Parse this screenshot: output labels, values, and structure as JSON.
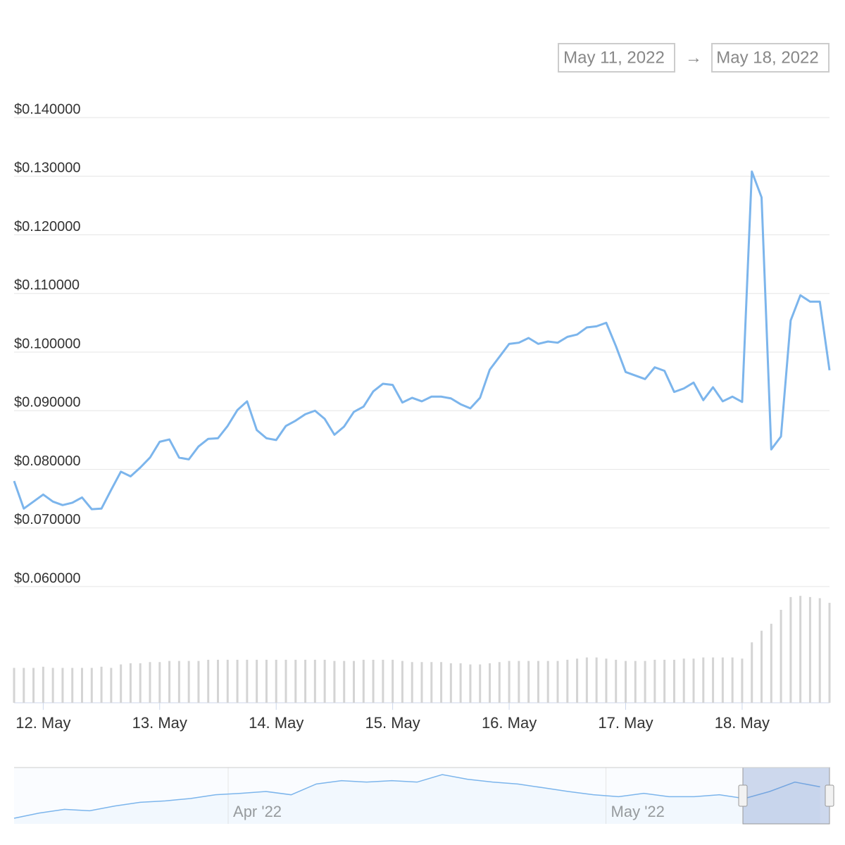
{
  "range_selector": {
    "from": "May 11, 2022",
    "arrow": "→",
    "to": "May 18, 2022"
  },
  "chart_data": {
    "type": "line",
    "x": [
      11.75,
      11.8333,
      11.9167,
      12,
      12.0833,
      12.1667,
      12.25,
      12.3333,
      12.4167,
      12.5,
      12.5833,
      12.6667,
      12.75,
      12.8333,
      12.9167,
      13,
      13.0833,
      13.1667,
      13.25,
      13.3333,
      13.4167,
      13.5,
      13.5833,
      13.6667,
      13.75,
      13.8333,
      13.9167,
      14,
      14.0833,
      14.1667,
      14.25,
      14.3333,
      14.4167,
      14.5,
      14.5833,
      14.6667,
      14.75,
      14.8333,
      14.9167,
      15,
      15.0833,
      15.1667,
      15.25,
      15.3333,
      15.4167,
      15.5,
      15.5833,
      15.6667,
      15.75,
      15.8333,
      15.9167,
      16,
      16.0833,
      16.1667,
      16.25,
      16.3333,
      16.4167,
      16.5,
      16.5833,
      16.6667,
      16.75,
      16.8333,
      16.9167,
      17,
      17.0833,
      17.1667,
      17.25,
      17.3333,
      17.4167,
      17.5,
      17.5833,
      17.6667,
      17.75,
      17.8333,
      17.9167,
      18,
      18.0833,
      18.1667,
      18.25,
      18.3333,
      18.4167,
      18.5,
      18.5833,
      18.6667,
      18.75
    ],
    "series": [
      {
        "color": "#7cb5ec",
        "values": [
          0.078,
          0.0733,
          0.0745,
          0.0757,
          0.0745,
          0.0739,
          0.0743,
          0.0752,
          0.0732,
          0.0733,
          0.0765,
          0.0796,
          0.0788,
          0.0803,
          0.082,
          0.0847,
          0.0851,
          0.082,
          0.0817,
          0.0839,
          0.0852,
          0.0853,
          0.0874,
          0.0901,
          0.0916,
          0.0867,
          0.0853,
          0.085,
          0.0874,
          0.0883,
          0.0894,
          0.09,
          0.0886,
          0.0859,
          0.0873,
          0.0898,
          0.0907,
          0.0933,
          0.0946,
          0.0944,
          0.0914,
          0.0922,
          0.0916,
          0.0924,
          0.0924,
          0.0921,
          0.0911,
          0.0904,
          0.0922,
          0.097,
          0.0992,
          0.1014,
          0.1016,
          0.1024,
          0.1014,
          0.1018,
          0.1016,
          0.1026,
          0.103,
          0.1042,
          0.1044,
          0.105,
          0.101,
          0.0966,
          0.096,
          0.0954,
          0.0974,
          0.0968,
          0.0932,
          0.0938,
          0.0948,
          0.0918,
          0.094,
          0.0916,
          0.0924,
          0.0915,
          0.1308,
          0.1264,
          0.0834,
          0.0856,
          0.1054,
          0.1097,
          0.1086,
          0.1086,
          0.0969
        ]
      },
      {
        "type": "column",
        "axis": "y2",
        "color": "#d4d4d4",
        "values": [
          30,
          30,
          30,
          31,
          30,
          30,
          30,
          30,
          30,
          31,
          30,
          33,
          34,
          34,
          35,
          35,
          36,
          36,
          36,
          36,
          37,
          37,
          37,
          37,
          37,
          37,
          37,
          37,
          37,
          37,
          37,
          37,
          37,
          36,
          36,
          36,
          37,
          37,
          37,
          37,
          36,
          35,
          35,
          35,
          35,
          34,
          34,
          33,
          33,
          34,
          35,
          36,
          36,
          36,
          36,
          36,
          36,
          37,
          38,
          39,
          39,
          38,
          37,
          36,
          36,
          36,
          37,
          37,
          37,
          38,
          38,
          39,
          39,
          39,
          39,
          38,
          52,
          62,
          68,
          80,
          91,
          92,
          91,
          90,
          86
        ]
      }
    ],
    "xlim": [
      11.75,
      18.75
    ],
    "xticks": [
      {
        "value": 12,
        "label": "12. May"
      },
      {
        "value": 13,
        "label": "13. May"
      },
      {
        "value": 14,
        "label": "14. May"
      },
      {
        "value": 15,
        "label": "15. May"
      },
      {
        "value": 16,
        "label": "16. May"
      },
      {
        "value": 17,
        "label": "17. May"
      },
      {
        "value": 18,
        "label": "18. May"
      }
    ],
    "ylim": [
      0.06,
      0.14
    ],
    "yticks": [
      {
        "value": 0.06,
        "label": "$0.060000"
      },
      {
        "value": 0.07,
        "label": "$0.070000"
      },
      {
        "value": 0.08,
        "label": "$0.080000"
      },
      {
        "value": 0.09,
        "label": "$0.090000"
      },
      {
        "value": 0.1,
        "label": "$0.100000"
      },
      {
        "value": 0.11,
        "label": "$0.110000"
      },
      {
        "value": 0.12,
        "label": "$0.120000"
      },
      {
        "value": 0.13,
        "label": "$0.130000"
      },
      {
        "value": 0.14,
        "label": "$0.140000"
      }
    ],
    "y2lim": [
      0,
      100
    ],
    "grid": true
  },
  "navigator": {
    "type": "line",
    "color": "#7cb5ec",
    "x": [
      74,
      76,
      78,
      80,
      82,
      84,
      86,
      88,
      90,
      92,
      94,
      96,
      98,
      100,
      102,
      104,
      106,
      108,
      110,
      112,
      114,
      116,
      118,
      120,
      122,
      124,
      126,
      128,
      130,
      132,
      134,
      136,
      138
    ],
    "values": [
      0.032,
      0.043,
      0.051,
      0.048,
      0.058,
      0.066,
      0.069,
      0.074,
      0.082,
      0.085,
      0.089,
      0.082,
      0.105,
      0.112,
      0.109,
      0.112,
      0.109,
      0.125,
      0.115,
      0.109,
      0.105,
      0.097,
      0.089,
      0.082,
      0.078,
      0.085,
      0.078,
      0.078,
      0.082,
      0.074,
      0.089,
      0.109,
      0.099
    ],
    "xlim": [
      74,
      138.75
    ],
    "ylim": [
      0.02,
      0.14
    ],
    "xticks": [
      {
        "value": 91,
        "label": "Apr '22"
      },
      {
        "value": 121,
        "label": "May '22"
      }
    ]
  }
}
